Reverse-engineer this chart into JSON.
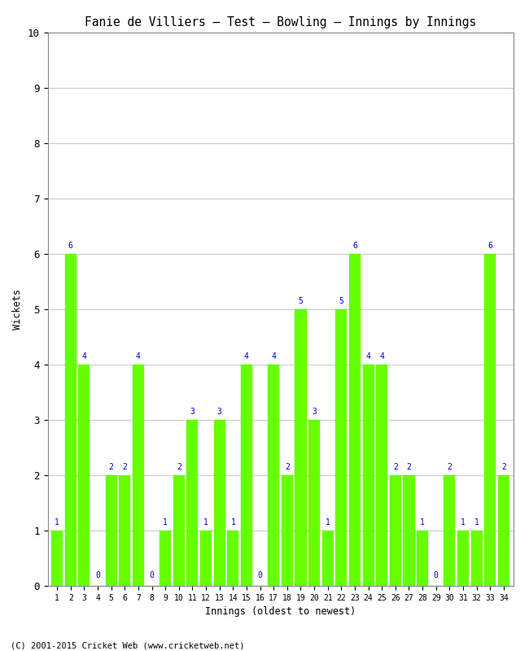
{
  "title": "Fanie de Villiers – Test – Bowling – Innings by Innings",
  "xlabel": "Innings (oldest to newest)",
  "ylabel": "Wickets",
  "footer": "(C) 2001-2015 Cricket Web (www.cricketweb.net)",
  "ylim": [
    0,
    10
  ],
  "yticks": [
    0,
    1,
    2,
    3,
    4,
    5,
    6,
    7,
    8,
    9,
    10
  ],
  "bar_color": "#66ff00",
  "bar_edge_color": "#66ff00",
  "label_color": "#0000cc",
  "background_color": "#ffffff",
  "grid_color": "#cccccc",
  "innings": [
    1,
    2,
    3,
    4,
    5,
    6,
    7,
    8,
    9,
    10,
    11,
    12,
    13,
    14,
    15,
    16,
    17,
    18,
    19,
    20,
    21,
    22,
    23,
    24,
    25,
    26,
    27,
    28,
    29,
    30,
    31,
    32,
    33,
    34
  ],
  "wickets": [
    1,
    6,
    4,
    0,
    2,
    2,
    4,
    0,
    1,
    2,
    3,
    1,
    3,
    1,
    4,
    0,
    4,
    2,
    5,
    3,
    1,
    5,
    6,
    4,
    4,
    2,
    2,
    1,
    0,
    2,
    1,
    1,
    6,
    2
  ]
}
